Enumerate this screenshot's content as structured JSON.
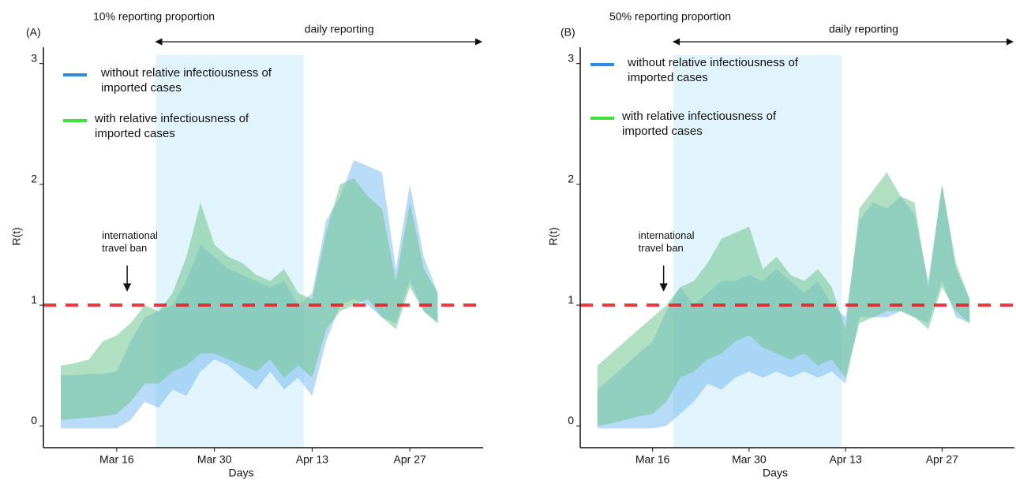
{
  "chart_data": [
    {
      "type": "band",
      "panel_label": "(A)",
      "title": "10% reporting proportion",
      "ylabel": "R(t)",
      "xlabel": "Days",
      "x": [
        8,
        10,
        12,
        14,
        16,
        18,
        20,
        22,
        24,
        26,
        28,
        30,
        32,
        34,
        36,
        38,
        40,
        42,
        44,
        46,
        48,
        50,
        52,
        54,
        56,
        58,
        60,
        62
      ],
      "xlim": [
        5.5,
        68.5
      ],
      "xticks": [
        {
          "value": 16,
          "label": "Mar 16"
        },
        {
          "value": 30,
          "label": "Mar 30"
        },
        {
          "value": 44,
          "label": "Apr 13"
        },
        {
          "value": 58,
          "label": "Apr 27"
        }
      ],
      "ylim": [
        -0.18,
        3.2
      ],
      "yticks": [
        0,
        1,
        2,
        3
      ],
      "reference_line": {
        "value": 1,
        "color": "#e8141b"
      },
      "shade": {
        "from": 21.6,
        "to": 42.8,
        "color": "#e1f3fb",
        "label": "daily reporting"
      },
      "annotation": {
        "text": "international travel ban",
        "x": 17.5
      },
      "series": [
        {
          "name": "without relative infectiousness of imported cases",
          "color": "#2b8be8",
          "band_color": "#7dbdf2",
          "lower": [
            -0.02,
            -0.02,
            -0.02,
            -0.02,
            -0.02,
            0.05,
            0.2,
            0.15,
            0.3,
            0.25,
            0.45,
            0.55,
            0.5,
            0.4,
            0.3,
            0.45,
            0.3,
            0.4,
            0.25,
            0.7,
            1.0,
            1.05,
            1.0,
            0.9,
            0.85,
            1.2,
            0.95,
            0.85
          ],
          "upper": [
            0.42,
            0.42,
            0.43,
            0.43,
            0.45,
            0.7,
            0.9,
            0.95,
            1.0,
            1.2,
            1.5,
            1.4,
            1.3,
            1.25,
            1.2,
            1.15,
            1.2,
            1.0,
            1.1,
            1.7,
            1.9,
            2.2,
            2.15,
            2.1,
            1.3,
            2.0,
            1.4,
            1.1
          ]
        },
        {
          "name": "with relative infectiousness of imported cases",
          "color": "#3de23d",
          "band_color": "#6fc48e",
          "lower": [
            0.05,
            0.06,
            0.07,
            0.08,
            0.1,
            0.2,
            0.35,
            0.35,
            0.45,
            0.5,
            0.6,
            0.6,
            0.55,
            0.5,
            0.45,
            0.55,
            0.4,
            0.5,
            0.4,
            0.8,
            0.95,
            1.0,
            1.05,
            0.9,
            0.8,
            1.15,
            0.95,
            0.85
          ],
          "upper": [
            0.5,
            0.52,
            0.55,
            0.7,
            0.75,
            0.85,
            1.0,
            0.95,
            1.1,
            1.4,
            1.85,
            1.5,
            1.4,
            1.35,
            1.25,
            1.2,
            1.3,
            1.1,
            1.05,
            1.6,
            2.0,
            2.05,
            1.9,
            1.8,
            1.2,
            1.85,
            1.3,
            1.1
          ]
        }
      ]
    },
    {
      "type": "band",
      "panel_label": "(B)",
      "title": "50% reporting proportion",
      "ylabel": "R(t)",
      "xlabel": "Days",
      "x": [
        8,
        10,
        12,
        14,
        16,
        18,
        20,
        22,
        24,
        26,
        28,
        30,
        32,
        34,
        36,
        38,
        40,
        42,
        44,
        46,
        48,
        50,
        52,
        54,
        56,
        58,
        60,
        62
      ],
      "xlim": [
        5.5,
        68.5
      ],
      "xticks": [
        {
          "value": 16,
          "label": "Mar 16"
        },
        {
          "value": 30,
          "label": "Mar 30"
        },
        {
          "value": 44,
          "label": "Apr 13"
        },
        {
          "value": 58,
          "label": "Apr 27"
        }
      ],
      "ylim": [
        -0.18,
        3.2
      ],
      "yticks": [
        0,
        1,
        2,
        3
      ],
      "reference_line": {
        "value": 1,
        "color": "#e8141b"
      },
      "shade": {
        "from": 19,
        "to": 43.4,
        "color": "#e1f3fb",
        "label": "daily reporting"
      },
      "annotation": {
        "text": "international travel ban",
        "x": 17.6
      },
      "series": [
        {
          "name": "without relative infectiousness of imported cases",
          "color": "#2b8be8",
          "band_color": "#7dbdf2",
          "lower": [
            -0.02,
            -0.02,
            -0.02,
            -0.02,
            -0.02,
            0.0,
            0.1,
            0.2,
            0.35,
            0.3,
            0.4,
            0.45,
            0.4,
            0.45,
            0.4,
            0.45,
            0.4,
            0.45,
            0.35,
            0.9,
            0.9,
            0.9,
            0.95,
            0.9,
            0.85,
            1.2,
            0.9,
            0.85
          ],
          "upper": [
            0.3,
            0.4,
            0.5,
            0.6,
            0.7,
            0.95,
            1.15,
            1.0,
            1.1,
            1.2,
            1.2,
            1.25,
            1.2,
            1.3,
            1.2,
            1.1,
            1.2,
            1.0,
            0.9,
            1.7,
            1.85,
            1.8,
            1.9,
            1.75,
            1.2,
            2.0,
            1.3,
            1.05
          ]
        },
        {
          "name": "with relative infectiousness of imported cases",
          "color": "#3de23d",
          "band_color": "#6fc48e",
          "lower": [
            0.0,
            0.02,
            0.05,
            0.08,
            0.1,
            0.2,
            0.4,
            0.45,
            0.55,
            0.6,
            0.7,
            0.75,
            0.65,
            0.6,
            0.55,
            0.6,
            0.5,
            0.55,
            0.4,
            0.85,
            0.9,
            0.95,
            0.95,
            0.9,
            0.8,
            1.15,
            0.95,
            0.85
          ],
          "upper": [
            0.5,
            0.6,
            0.7,
            0.8,
            0.9,
            1.0,
            1.15,
            1.2,
            1.35,
            1.55,
            1.6,
            1.65,
            1.3,
            1.4,
            1.25,
            1.2,
            1.3,
            1.15,
            0.8,
            1.8,
            1.95,
            2.1,
            1.9,
            1.85,
            1.15,
            2.0,
            1.35,
            1.05
          ]
        }
      ]
    }
  ]
}
